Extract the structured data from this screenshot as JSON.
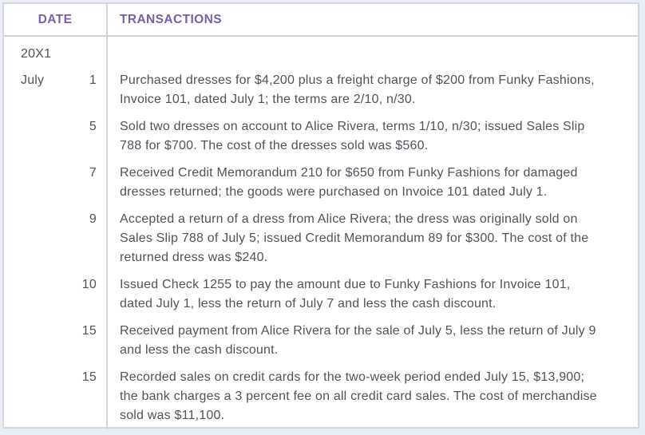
{
  "table": {
    "header": {
      "date": "DATE",
      "transactions": "TRANSACTIONS"
    },
    "year": "20X1",
    "month": "July",
    "rows": [
      {
        "day": "1",
        "text": "Purchased dresses for $4,200 plus a freight charge of $200 from Funky Fashions,\nInvoice 101, dated July 1; the terms are 2/10, n/30."
      },
      {
        "day": "5",
        "text": "Sold two dresses on account to Alice Rivera, terms 1/10, n/30; issued Sales Slip\n788 for $700. The cost of the dresses sold was $560."
      },
      {
        "day": "7",
        "text": "Received Credit Memorandum 210 for $650 from Funky Fashions for damaged\ndresses returned; the goods were purchased on Invoice 101 dated July 1."
      },
      {
        "day": "9",
        "text": "Accepted a return of a dress from Alice Rivera; the dress was originally sold on\nSales Slip 788 of July 5; issued Credit Memorandum 89 for $300. The cost of the\nreturned dress was $240."
      },
      {
        "day": "10",
        "text": "Issued Check 1255 to pay the amount due to Funky Fashions for Invoice 101,\ndated July 1, less the return of July 7 and less the cash discount."
      },
      {
        "day": "15",
        "text": "Received payment from Alice Rivera for the sale of July 5, less the return of July 9\nand less the cash discount."
      },
      {
        "day": "15",
        "text": "Recorded sales on credit cards for the two-week period ended July 15, $13,900;\nthe bank charges a 3 percent fee on all credit card sales. The cost of merchandise\nsold was $11,100."
      }
    ],
    "colors": {
      "header_text": "#7b5ea8",
      "body_text": "#4e545a",
      "border": "#d2d4d8",
      "table_background": "#ffffff",
      "page_background": "#e8eef5"
    }
  }
}
